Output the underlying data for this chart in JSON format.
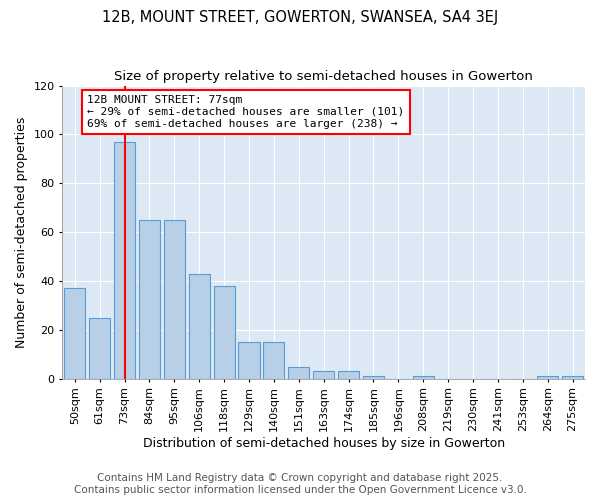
{
  "title": "12B, MOUNT STREET, GOWERTON, SWANSEA, SA4 3EJ",
  "subtitle": "Size of property relative to semi-detached houses in Gowerton",
  "xlabel": "Distribution of semi-detached houses by size in Gowerton",
  "ylabel": "Number of semi-detached properties",
  "footer_line1": "Contains HM Land Registry data © Crown copyright and database right 2025.",
  "footer_line2": "Contains public sector information licensed under the Open Government Licence v3.0.",
  "bin_labels": [
    "50sqm",
    "61sqm",
    "73sqm",
    "84sqm",
    "95sqm",
    "106sqm",
    "118sqm",
    "129sqm",
    "140sqm",
    "151sqm",
    "163sqm",
    "174sqm",
    "185sqm",
    "196sqm",
    "208sqm",
    "219sqm",
    "230sqm",
    "241sqm",
    "253sqm",
    "264sqm",
    "275sqm"
  ],
  "bar_values": [
    37,
    25,
    97,
    65,
    65,
    43,
    38,
    15,
    15,
    5,
    3,
    3,
    1,
    0,
    1,
    0,
    0,
    0,
    0,
    1,
    1
  ],
  "bar_color": "#b8cfe8",
  "bar_edge_color": "#5b9bd5",
  "property_bin_index": 2,
  "vline_color": "red",
  "annotation_text": "12B MOUNT STREET: 77sqm\n← 29% of semi-detached houses are smaller (101)\n69% of semi-detached houses are larger (238) →",
  "annotation_box_color": "red",
  "ylim": [
    0,
    120
  ],
  "yticks": [
    0,
    20,
    40,
    60,
    80,
    100,
    120
  ],
  "background_color": "#ffffff",
  "plot_bg_color": "#dce9f5",
  "grid_color": "white",
  "title_fontsize": 10.5,
  "subtitle_fontsize": 9.5,
  "axis_label_fontsize": 9,
  "tick_fontsize": 8,
  "annotation_fontsize": 8,
  "footer_fontsize": 7.5
}
